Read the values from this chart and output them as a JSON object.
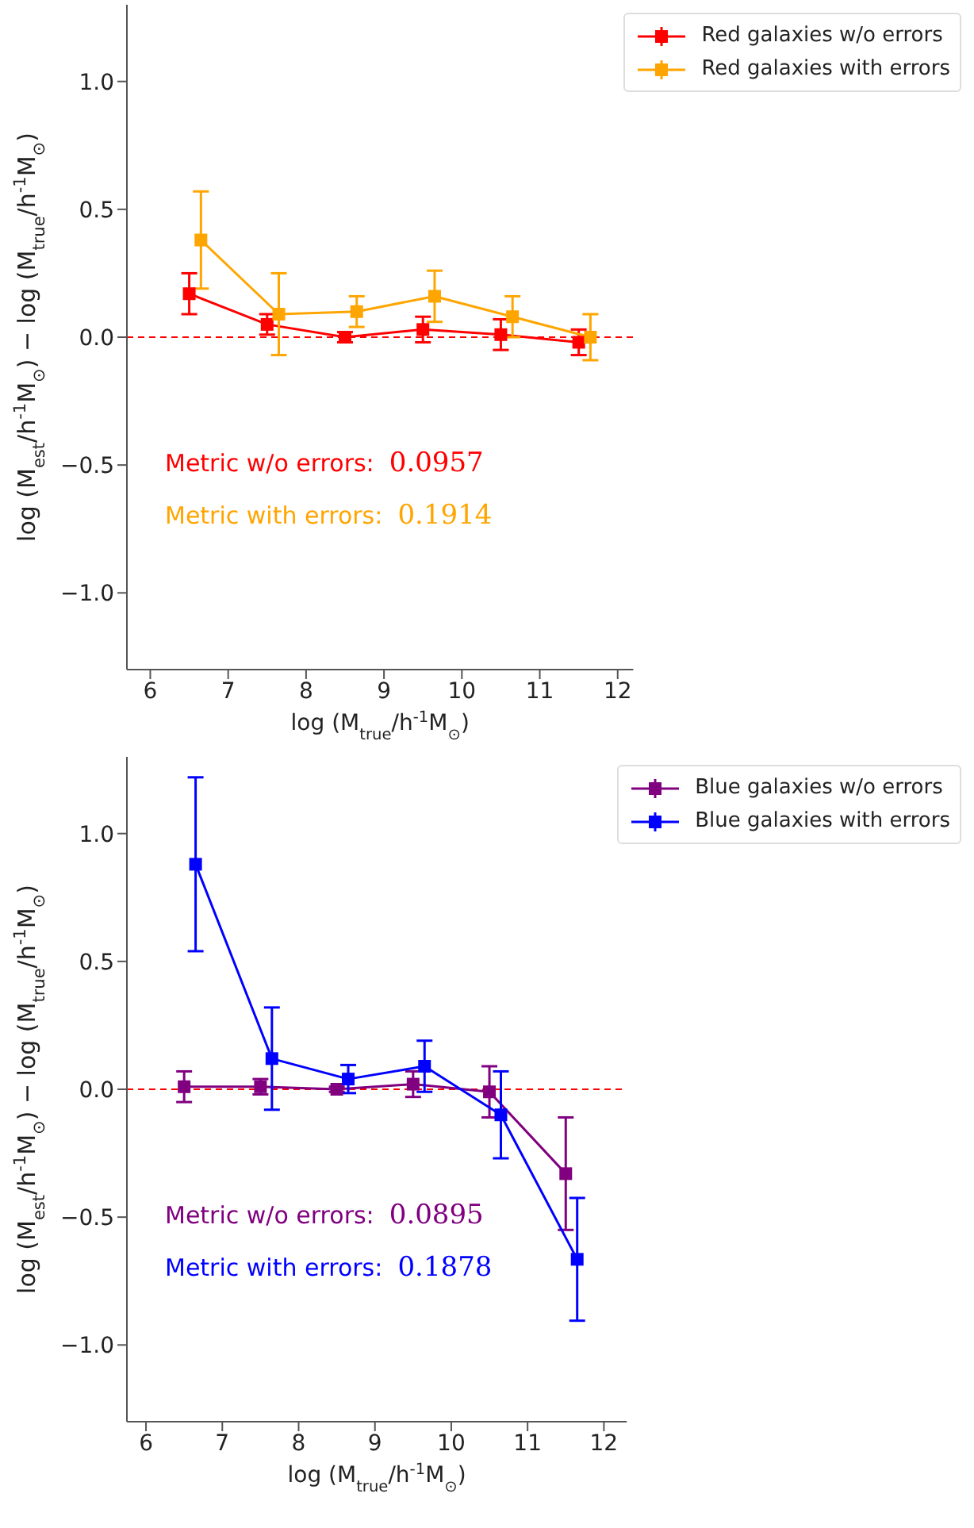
{
  "chart_data": [
    {
      "type": "line",
      "xlabel": "log (M$_{true}$/h$^{-1}$M$_{⊙}$)",
      "ylabel": "log (M$_{est}$/h$^{-1}$M$_{⊙}$) − log (M$_{true}$/h$^{-1}$M$_{⊙}$)",
      "xlim": [
        5.7,
        12.2
      ],
      "ylim": [
        -1.3,
        1.3
      ],
      "xticks": [
        6,
        7,
        8,
        9,
        10,
        11,
        12
      ],
      "yticks": [
        {
          "value": -1,
          "label": "−1.0"
        },
        {
          "value": -0.5,
          "label": "−0.5"
        },
        {
          "value": 0,
          "label": "0.0"
        },
        {
          "value": 0.5,
          "label": "0.5"
        },
        {
          "value": 1,
          "label": "1.0"
        }
      ],
      "marker": "square",
      "legend": "top right",
      "series": [
        {
          "name": "Red galaxies w/o errors",
          "color": "#ff0000",
          "x": [
            6.5,
            7.5,
            8.5,
            9.5,
            10.5,
            11.5
          ],
          "values": [
            0.17,
            0.05,
            0.0,
            0.03,
            0.01,
            -0.02
          ],
          "errors": [
            0.08,
            0.04,
            0.02,
            0.05,
            0.06,
            0.05
          ]
        },
        {
          "name": "Red galaxies with errors",
          "color": "#ffa500",
          "x": [
            6.65,
            7.65,
            8.65,
            9.65,
            10.65,
            11.65
          ],
          "values": [
            0.38,
            0.09,
            0.1,
            0.16,
            0.08,
            0.0
          ],
          "errors": [
            0.19,
            0.16,
            0.06,
            0.1,
            0.08,
            0.09
          ]
        }
      ],
      "ref_lines": [
        {
          "axis": "y",
          "value": 0,
          "color": "#ff0000",
          "line_style": "dashed"
        }
      ],
      "annotations": [
        "Metric w/o errors:  0.0957",
        "Metric with errors:  0.1914"
      ]
    },
    {
      "type": "line",
      "xlabel": "log (M$_{true}$/h$^{-1}$M$_{⊙}$)",
      "ylabel": "log (M$_{est}$/h$^{-1}$M$_{⊙}$) − log (M$_{true}$/h$^{-1}$M$_{⊙}$)",
      "xlim": [
        5.75,
        12.3
      ],
      "ylim": [
        -1.3,
        1.3
      ],
      "xticks": [
        6,
        7,
        8,
        9,
        10,
        11,
        12
      ],
      "yticks": [
        {
          "value": -1,
          "label": "−1.0"
        },
        {
          "value": -0.5,
          "label": "−0.5"
        },
        {
          "value": 0,
          "label": "0.0"
        },
        {
          "value": 0.5,
          "label": "0.5"
        },
        {
          "value": 1,
          "label": "1.0"
        }
      ],
      "marker": "square",
      "legend": "top right",
      "series": [
        {
          "name": "Blue galaxies w/o errors",
          "color": "#800080",
          "x": [
            6.5,
            7.5,
            8.5,
            9.5,
            10.5,
            11.5
          ],
          "values": [
            0.01,
            0.01,
            0.0,
            0.02,
            -0.01,
            -0.33
          ],
          "errors": [
            0.06,
            0.03,
            0.01,
            0.05,
            0.1,
            0.22
          ]
        },
        {
          "name": "Blue galaxies with errors",
          "color": "#0000ff",
          "x": [
            6.65,
            7.65,
            8.65,
            9.65,
            10.65,
            11.65
          ],
          "values": [
            0.88,
            0.12,
            0.04,
            0.09,
            -0.1,
            -0.665
          ],
          "errors": [
            0.34,
            0.2,
            0.055,
            0.1,
            0.17,
            0.24
          ]
        }
      ],
      "ref_lines": [
        {
          "axis": "y",
          "value": 0,
          "color": "#ff0000",
          "line_style": "dashed"
        }
      ],
      "annotations": [
        "Metric w/o errors:  0.0895",
        "Metric with errors:  0.1878"
      ]
    }
  ]
}
